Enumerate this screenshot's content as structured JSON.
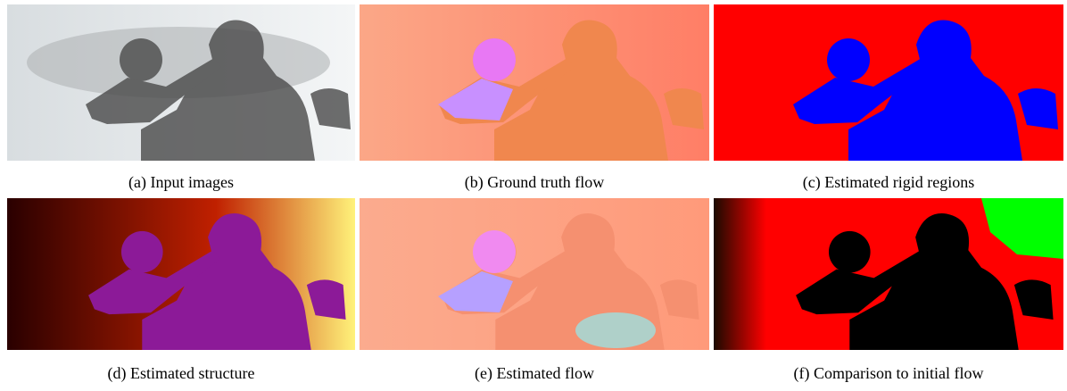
{
  "figure": {
    "panels": [
      {
        "caption": "(a) Input images"
      },
      {
        "caption": "(b) Ground truth flow"
      },
      {
        "caption": "(c) Estimated rigid regions"
      },
      {
        "caption": "(d) Estimated structure"
      },
      {
        "caption": "(e) Estimated flow"
      },
      {
        "caption": "(f) Comparison to initial flow"
      }
    ]
  }
}
